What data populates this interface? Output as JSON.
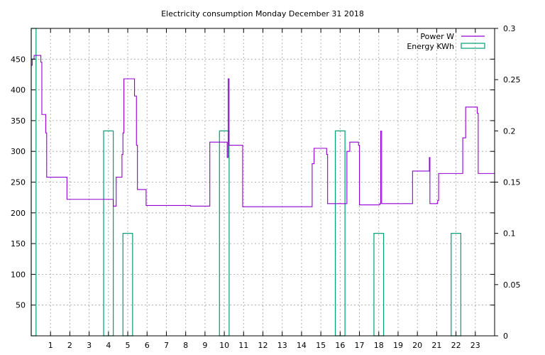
{
  "chart_data": {
    "type": "line",
    "title": "Electricity consumption Monday December 31 2018",
    "x_ticks": [
      1,
      2,
      3,
      4,
      5,
      6,
      7,
      8,
      9,
      10,
      11,
      12,
      13,
      14,
      15,
      16,
      17,
      18,
      19,
      20,
      21,
      22,
      23
    ],
    "xlim": [
      0,
      24
    ],
    "y_left": {
      "lim": [
        0,
        500
      ],
      "ticks": [
        50,
        100,
        150,
        200,
        250,
        300,
        350,
        400,
        450
      ]
    },
    "y_right": {
      "lim": [
        0,
        0.3
      ],
      "ticks": [
        0,
        0.05,
        0.1,
        0.15,
        0.2,
        0.25,
        0.3
      ]
    },
    "grid": true,
    "legend_position": "top-right",
    "colors": {
      "power": "#9400d3",
      "energy": "#009e73"
    },
    "series": [
      {
        "name": "Power W",
        "axis": "left",
        "style": "step",
        "points": [
          [
            0.0,
            440
          ],
          [
            0.05,
            450
          ],
          [
            0.15,
            456
          ],
          [
            0.5,
            445
          ],
          [
            0.55,
            360
          ],
          [
            0.75,
            330
          ],
          [
            0.8,
            258
          ],
          [
            1.8,
            258
          ],
          [
            1.85,
            222
          ],
          [
            4.2,
            222
          ],
          [
            4.25,
            211
          ],
          [
            4.4,
            258
          ],
          [
            4.7,
            295
          ],
          [
            4.75,
            330
          ],
          [
            4.8,
            418
          ],
          [
            5.35,
            390
          ],
          [
            5.45,
            310
          ],
          [
            5.5,
            238
          ],
          [
            5.9,
            238
          ],
          [
            5.95,
            212
          ],
          [
            8.2,
            212
          ],
          [
            8.25,
            211
          ],
          [
            9.2,
            211
          ],
          [
            9.25,
            315
          ],
          [
            10.1,
            315
          ],
          [
            10.15,
            290
          ],
          [
            10.2,
            418
          ],
          [
            10.25,
            310
          ],
          [
            10.9,
            310
          ],
          [
            10.95,
            210
          ],
          [
            14.5,
            210
          ],
          [
            14.55,
            280
          ],
          [
            14.65,
            305
          ],
          [
            15.3,
            295
          ],
          [
            15.35,
            215
          ],
          [
            16.3,
            215
          ],
          [
            16.35,
            300
          ],
          [
            16.5,
            315
          ],
          [
            16.95,
            310
          ],
          [
            17.0,
            213
          ],
          [
            17.95,
            213
          ],
          [
            18.05,
            215
          ],
          [
            18.1,
            333
          ],
          [
            18.15,
            215
          ],
          [
            19.7,
            215
          ],
          [
            19.75,
            268
          ],
          [
            20.6,
            268
          ],
          [
            20.62,
            290
          ],
          [
            20.65,
            215
          ],
          [
            21.05,
            220
          ],
          [
            21.1,
            264
          ],
          [
            22.3,
            264
          ],
          [
            22.35,
            322
          ],
          [
            22.5,
            372
          ],
          [
            23.1,
            362
          ],
          [
            23.15,
            264
          ],
          [
            24.0,
            264
          ]
        ]
      },
      {
        "name": "Energy KWh",
        "axis": "right",
        "style": "bars",
        "bar_width": 0.5,
        "centers": [
          0,
          1,
          2,
          3,
          4,
          5,
          6,
          7,
          8,
          9,
          10,
          11,
          12,
          13,
          14,
          15,
          16,
          17,
          18,
          19,
          20,
          21,
          22,
          23
        ],
        "values": [
          0.3,
          0,
          0,
          0,
          0.2,
          0.1,
          0,
          0,
          0,
          0,
          0.2,
          0,
          0,
          0,
          0,
          0,
          0.2,
          0,
          0.1,
          0,
          0,
          0,
          0.1,
          0
        ]
      }
    ]
  }
}
